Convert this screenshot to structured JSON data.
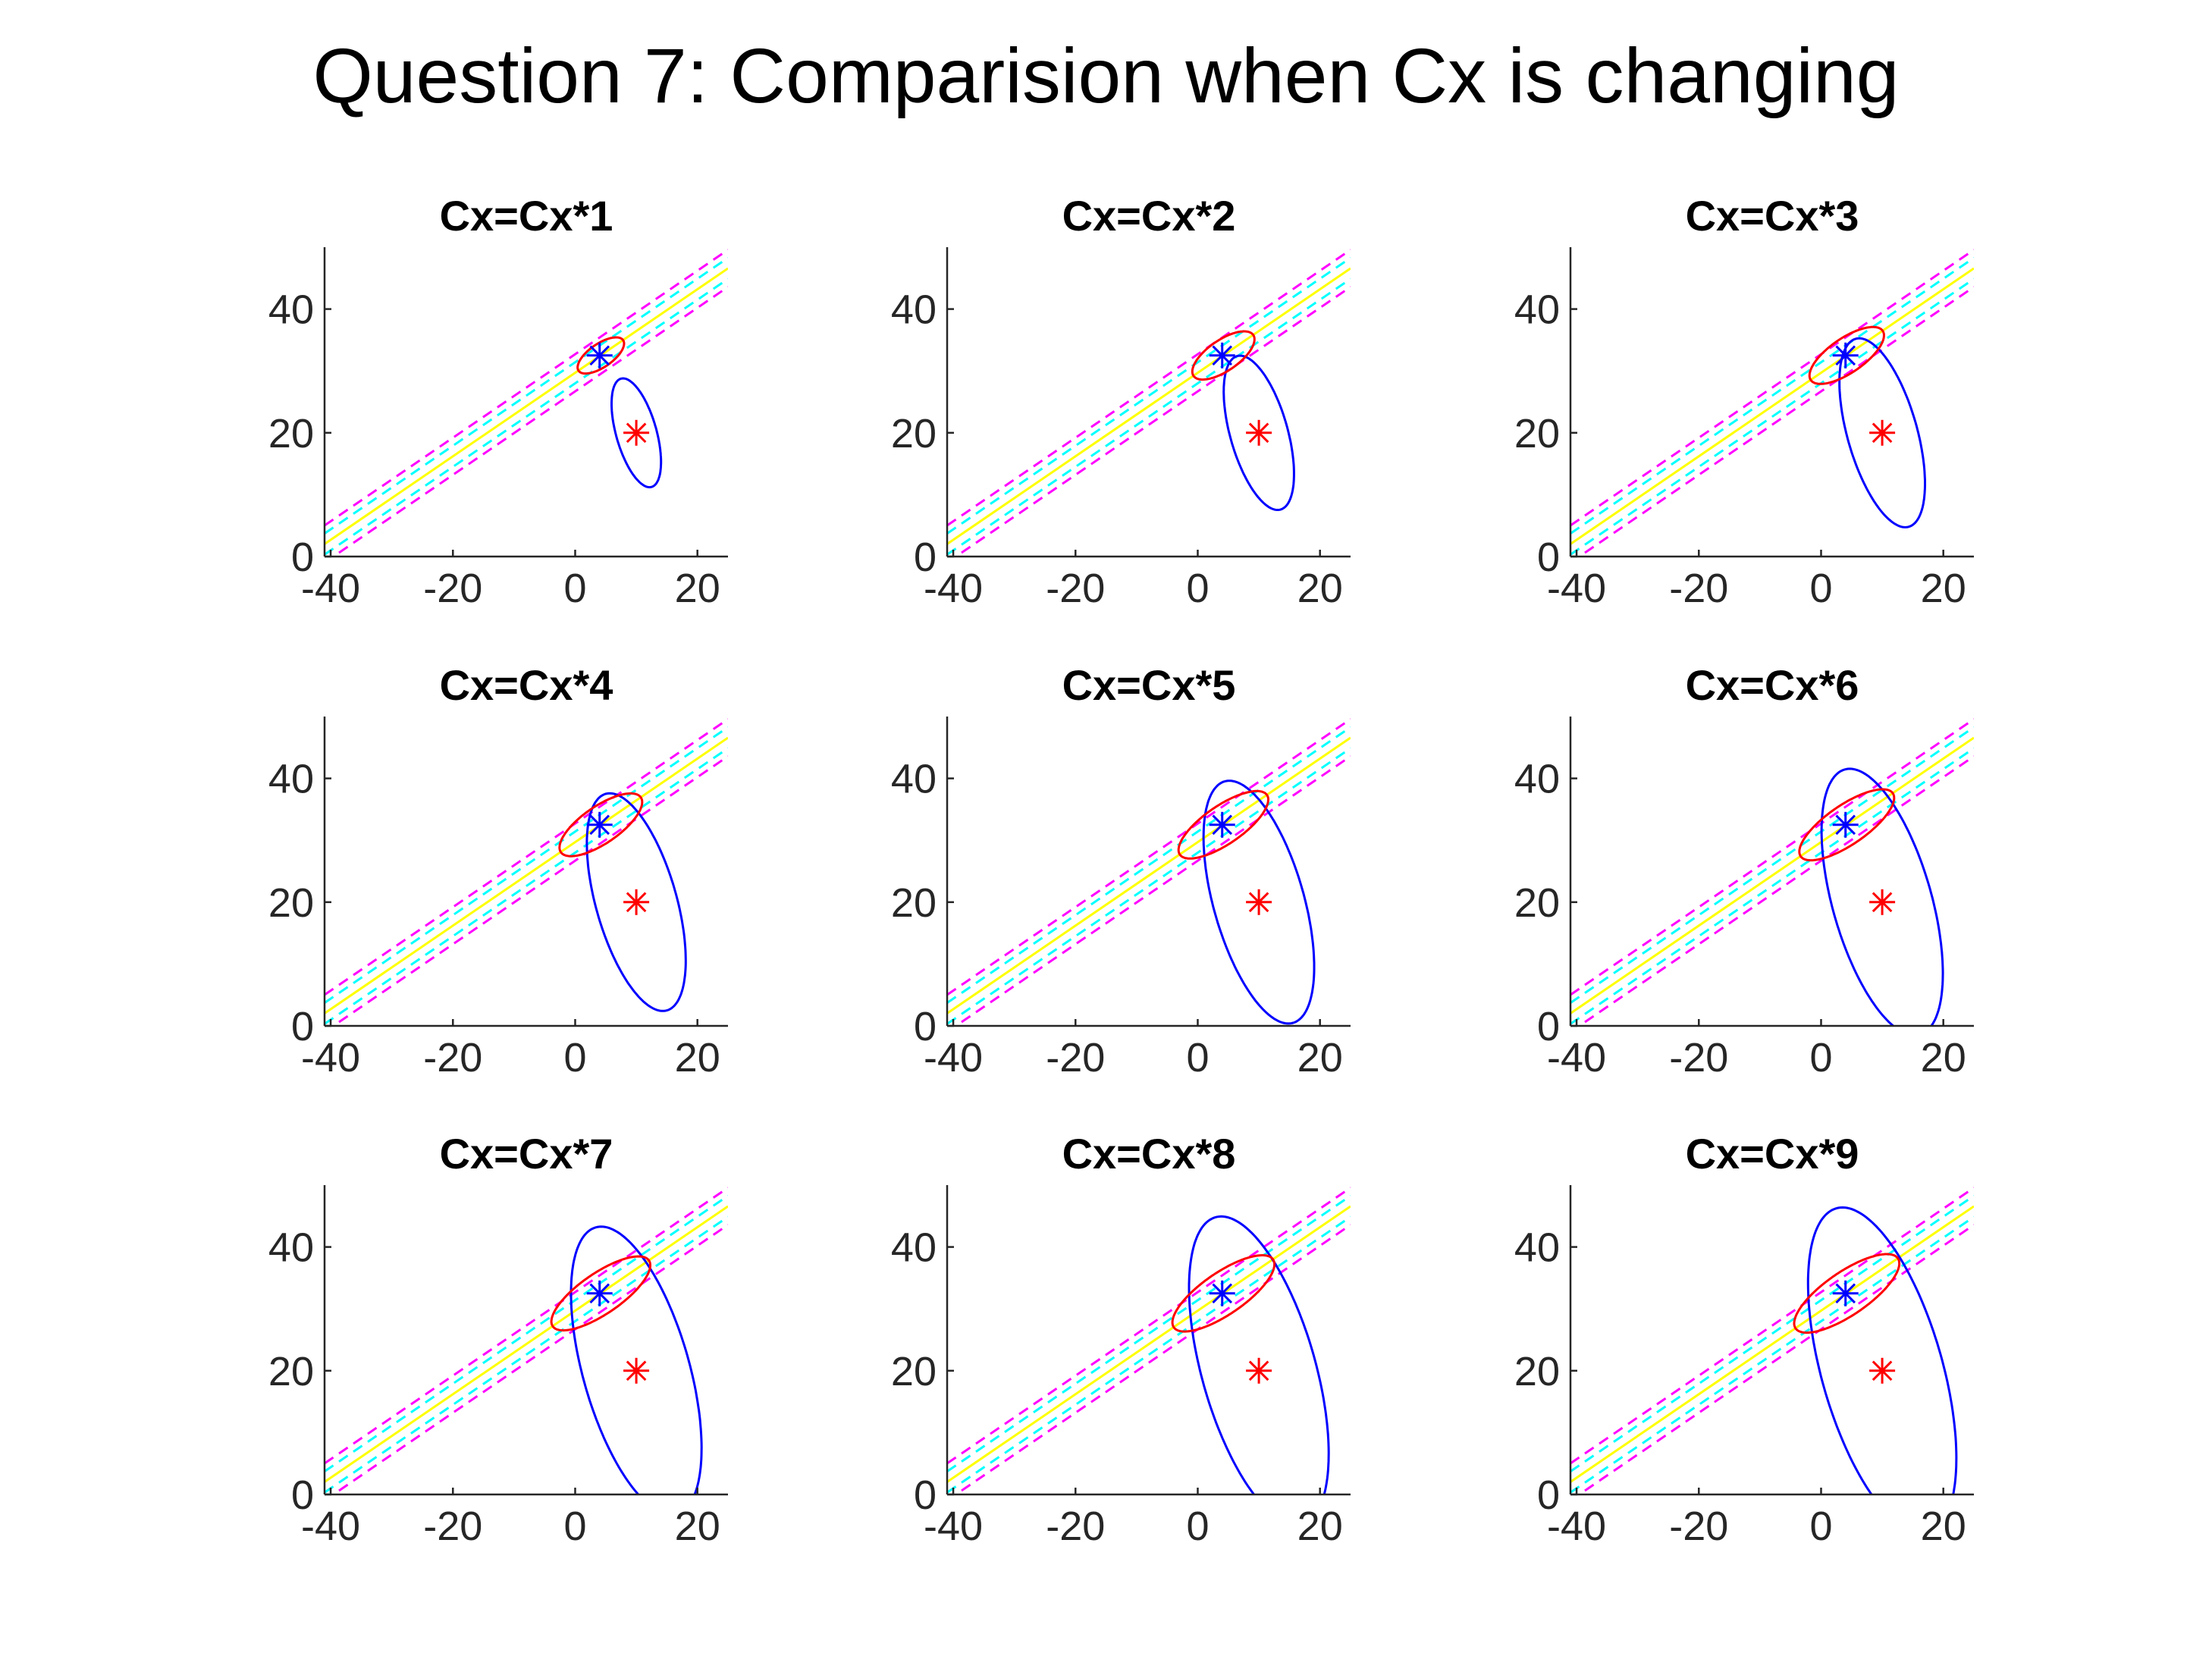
{
  "figure": {
    "title": "Question 7: Comparision when Cx is changing"
  },
  "colors": {
    "red": "#ff0000",
    "blue": "#0000ff",
    "yellow": "#ffff00",
    "cyan": "#00ffff",
    "magenta": "#ff00ff",
    "axis": "#262626"
  },
  "chart_data": {
    "type": "line",
    "layout": "3x3 grid of subplots",
    "xlim": [
      -41,
      25
    ],
    "ylim": [
      0,
      50
    ],
    "xticks": [
      -40,
      -20,
      0,
      20
    ],
    "yticks": [
      0,
      20,
      40
    ],
    "grid": false,
    "legend": "none",
    "lines": {
      "slope": 0.675,
      "solid_yellow_intercept": 29.7,
      "cyan_dashed_intercepts": [
        31.4,
        28.0
      ],
      "magenta_dashed_intercepts": [
        32.7,
        26.7
      ]
    },
    "red_star": {
      "x": 10,
      "y": 20
    },
    "blue_star": {
      "x": 4,
      "y": 32.5
    },
    "panels": [
      {
        "title": "Cx=Cx*1",
        "red_ellipse": {
          "cx": 4.2,
          "cy": 32.5,
          "semi_major": 4.4,
          "semi_minor": 1.9,
          "angle_deg": 34
        },
        "blue_ellipse": {
          "cx": 10,
          "cy": 20,
          "semi_major": 9.1,
          "semi_minor": 3.3,
          "angle_deg": -74
        }
      },
      {
        "title": "Cx=Cx*2",
        "red_ellipse": {
          "cx": 4.2,
          "cy": 32.5,
          "semi_major": 5.9,
          "semi_minor": 2.5,
          "angle_deg": 34
        },
        "blue_ellipse": {
          "cx": 10,
          "cy": 20,
          "semi_major": 12.9,
          "semi_minor": 4.7,
          "angle_deg": -74
        }
      },
      {
        "title": "Cx=Cx*3",
        "red_ellipse": {
          "cx": 4.2,
          "cy": 32.5,
          "semi_major": 7.1,
          "semi_minor": 2.8,
          "angle_deg": 34
        },
        "blue_ellipse": {
          "cx": 10,
          "cy": 20,
          "semi_major": 15.8,
          "semi_minor": 5.7,
          "angle_deg": -74
        }
      },
      {
        "title": "Cx=Cx*4",
        "red_ellipse": {
          "cx": 4.2,
          "cy": 32.5,
          "semi_major": 7.9,
          "semi_minor": 3.0,
          "angle_deg": 34
        },
        "blue_ellipse": {
          "cx": 10,
          "cy": 20,
          "semi_major": 18.2,
          "semi_minor": 6.6,
          "angle_deg": -74
        }
      },
      {
        "title": "Cx=Cx*5",
        "red_ellipse": {
          "cx": 4.2,
          "cy": 32.5,
          "semi_major": 8.6,
          "semi_minor": 3.1,
          "angle_deg": 34
        },
        "blue_ellipse": {
          "cx": 10,
          "cy": 20,
          "semi_major": 20.3,
          "semi_minor": 7.4,
          "angle_deg": -74
        }
      },
      {
        "title": "Cx=Cx*6",
        "red_ellipse": {
          "cx": 4.2,
          "cy": 32.5,
          "semi_major": 9.1,
          "semi_minor": 3.2,
          "angle_deg": 34
        },
        "blue_ellipse": {
          "cx": 10,
          "cy": 20,
          "semi_major": 22.3,
          "semi_minor": 8.1,
          "angle_deg": -74
        }
      },
      {
        "title": "Cx=Cx*7",
        "red_ellipse": {
          "cx": 4.2,
          "cy": 32.5,
          "semi_major": 9.5,
          "semi_minor": 3.3,
          "angle_deg": 34
        },
        "blue_ellipse": {
          "cx": 10,
          "cy": 20,
          "semi_major": 24.1,
          "semi_minor": 8.7,
          "angle_deg": -74
        }
      },
      {
        "title": "Cx=Cx*8",
        "red_ellipse": {
          "cx": 4.2,
          "cy": 32.5,
          "semi_major": 9.8,
          "semi_minor": 3.4,
          "angle_deg": 34
        },
        "blue_ellipse": {
          "cx": 10,
          "cy": 20,
          "semi_major": 25.8,
          "semi_minor": 9.3,
          "angle_deg": -74
        }
      },
      {
        "title": "Cx=Cx*9",
        "red_ellipse": {
          "cx": 4.2,
          "cy": 32.5,
          "semi_major": 10.1,
          "semi_minor": 3.5,
          "angle_deg": 34
        },
        "blue_ellipse": {
          "cx": 10,
          "cy": 20,
          "semi_major": 27.3,
          "semi_minor": 9.9,
          "angle_deg": -74
        }
      }
    ]
  }
}
